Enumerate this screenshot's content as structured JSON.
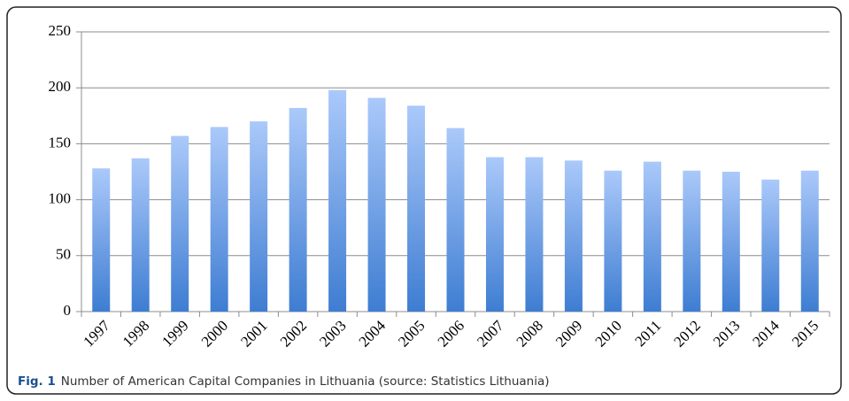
{
  "chart_data": {
    "type": "bar",
    "caption_label": "Fig. 1",
    "caption": "Number of American Capital Companies in Lithuania (source: Statistics Lithuania)",
    "categories": [
      "1997",
      "1998",
      "1999",
      "2000",
      "2001",
      "2002",
      "2003",
      "2004",
      "2005",
      "2006",
      "2007",
      "2008",
      "2009",
      "2010",
      "2011",
      "2012",
      "2013",
      "2014",
      "2015"
    ],
    "values": [
      128,
      137,
      157,
      165,
      170,
      182,
      198,
      191,
      184,
      164,
      138,
      138,
      135,
      126,
      134,
      126,
      125,
      118,
      126
    ],
    "color": "#3e7dd2",
    "ylim": [
      0,
      250
    ],
    "yticks": [
      0,
      50,
      100,
      150,
      200,
      250
    ],
    "grid": true
  }
}
